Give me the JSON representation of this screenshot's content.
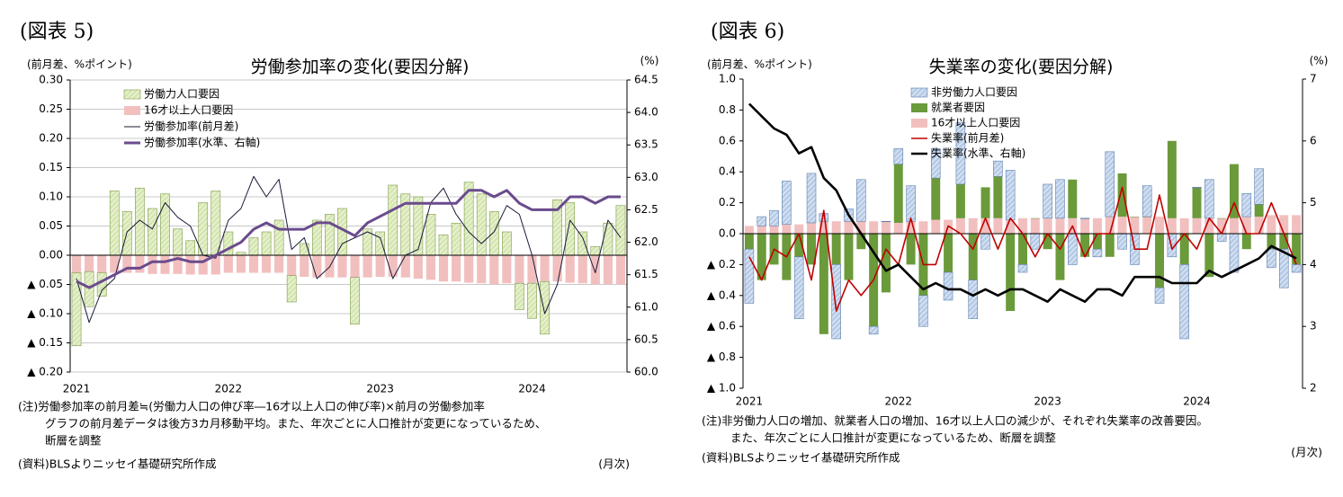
{
  "chart_data": [
    {
      "type": "bar",
      "figure_label": "(図表 5)",
      "title": "労働参加率の変化(要因分解)",
      "ylabel": "(前月差、%ポイント)",
      "y2label": "(%)",
      "xlabel": "(月次)",
      "notes": [
        "(注)労働参加率の前月差≒(労働力人口の伸び率―16才以上人口の伸び率)×前月の労働参加率",
        "グラフの前月差データは後方3カ月移動平均。また、年次ごとに人口推計が変更になっているため、",
        "断層を調整"
      ],
      "source": "(資料)BLSよりニッセイ基礎研究所作成",
      "categories": [
        "2021",
        null,
        null,
        null,
        null,
        null,
        null,
        null,
        null,
        null,
        null,
        null,
        "2022",
        null,
        null,
        null,
        null,
        null,
        null,
        null,
        null,
        null,
        null,
        null,
        "2023",
        null,
        null,
        null,
        null,
        null,
        null,
        null,
        null,
        null,
        null,
        null,
        "2024",
        null,
        null,
        null,
        null,
        null,
        null,
        null
      ],
      "ylim": [
        -0.2,
        0.3
      ],
      "yticks": [
        {
          "value": 0.3,
          "label": "0.30"
        },
        0.25,
        {
          "value": 0.2,
          "label": "0.20"
        },
        0.15,
        {
          "value": 0.1,
          "label": "0.10"
        },
        0.05,
        {
          "value": 0,
          "label": "0.00"
        },
        {
          "value": -0.05,
          "label": "▲ 0.05"
        },
        {
          "value": -0.1,
          "label": "▲ 0.10"
        },
        {
          "value": -0.15,
          "label": "▲ 0.15"
        },
        {
          "value": -0.2,
          "label": "▲ 0.20"
        }
      ],
      "y2lim": [
        60,
        64.5
      ],
      "y2ticks": [
        {
          "value": 60,
          "label": "60.0"
        },
        60.5,
        {
          "value": 61,
          "label": "61.0"
        },
        61.5,
        {
          "value": 62,
          "label": "62.0"
        },
        62.5,
        {
          "value": 63,
          "label": "63.0"
        },
        63.5,
        {
          "value": 64,
          "label": "64.0"
        },
        64.5
      ],
      "grid": true,
      "legend": "top-left",
      "series": [
        {
          "name": "労働力人口要因",
          "color": "#d5e6b0",
          "style": "bar",
          "hatch": true,
          "values": [
            -0.125,
            -0.06,
            -0.04,
            0.11,
            0.075,
            0.115,
            0.08,
            0.105,
            0.045,
            0.025,
            0.09,
            0.11,
            0.04,
            0.005,
            0.03,
            0.04,
            0.06,
            -0.045,
            0.02,
            0.06,
            0.07,
            0.08,
            -0.08,
            0.045,
            0.04,
            0.12,
            0.105,
            0.1,
            0.07,
            0.035,
            0.055,
            0.125,
            0.105,
            0.075,
            0.04,
            -0.045,
            -0.06,
            -0.09,
            0.095,
            0.09,
            0.04,
            0.015,
            0.055,
            0.085
          ]
        },
        {
          "name": "16才以上人口要因",
          "color": "#f2bfbf",
          "style": "bar",
          "values": [
            -0.03,
            -0.028,
            -0.03,
            -0.03,
            -0.03,
            -0.03,
            -0.032,
            -0.032,
            -0.032,
            -0.033,
            -0.033,
            -0.033,
            -0.03,
            -0.03,
            -0.03,
            -0.03,
            -0.03,
            -0.035,
            -0.037,
            -0.038,
            -0.038,
            -0.038,
            -0.038,
            -0.038,
            -0.037,
            -0.037,
            -0.038,
            -0.04,
            -0.042,
            -0.045,
            -0.045,
            -0.047,
            -0.048,
            -0.05,
            -0.048,
            -0.048,
            -0.048,
            -0.045,
            -0.045,
            -0.047,
            -0.048,
            -0.05,
            -0.05,
            -0.05
          ]
        },
        {
          "name": "労働参加率(前月差)",
          "color": "#1a1a3a",
          "style": "line",
          "width": 1,
          "values": [
            -0.04,
            -0.115,
            -0.06,
            -0.04,
            0.04,
            0.06,
            0.045,
            0.09,
            0.065,
            0.05,
            0.0,
            -0.005,
            0.06,
            0.08,
            0.135,
            0.1,
            0.13,
            0.01,
            0.03,
            -0.04,
            -0.02,
            0.02,
            0.03,
            0.04,
            0.03,
            -0.04,
            0.0,
            0.01,
            0.09,
            0.115,
            0.07,
            0.04,
            0.02,
            0.04,
            0.085,
            0.07,
            0.0,
            -0.1,
            -0.05,
            0.06,
            0.03,
            -0.03,
            0.06,
            0.03
          ]
        },
        {
          "name": "労働参加率(水準、右軸)",
          "color": "#6a4b8c",
          "style": "line",
          "width": 3,
          "axis": "y2",
          "values": [
            61.4,
            61.3,
            61.4,
            61.5,
            61.6,
            61.6,
            61.7,
            61.7,
            61.75,
            61.7,
            61.7,
            61.8,
            61.9,
            62.0,
            62.2,
            62.3,
            62.2,
            62.2,
            62.2,
            62.3,
            62.3,
            62.2,
            62.1,
            62.3,
            62.4,
            62.5,
            62.6,
            62.6,
            62.6,
            62.6,
            62.6,
            62.8,
            62.8,
            62.7,
            62.8,
            62.6,
            62.5,
            62.5,
            62.5,
            62.7,
            62.7,
            62.6,
            62.7,
            62.7
          ]
        }
      ]
    },
    {
      "type": "bar",
      "figure_label": "(図表 6)",
      "title": "失業率の変化(要因分解)",
      "ylabel": "(前月差、%ポイント)",
      "y2label": "(%)",
      "xlabel": "(月次)",
      "notes": [
        "(注)非労働力人口の増加、就業者人口の増加、16才以上人口の減少が、それぞれ失業率の改善要因。",
        "また、年次ごとに人口推計が変更になっているため、断層を調整"
      ],
      "source": "(資料)BLSよりニッセイ基礎研究所作成",
      "categories": [
        "2021",
        null,
        null,
        null,
        null,
        null,
        null,
        null,
        null,
        null,
        null,
        null,
        "2022",
        null,
        null,
        null,
        null,
        null,
        null,
        null,
        null,
        null,
        null,
        null,
        "2023",
        null,
        null,
        null,
        null,
        null,
        null,
        null,
        null,
        null,
        null,
        null,
        "2024",
        null,
        null,
        null,
        null,
        null,
        null,
        null,
        null
      ],
      "ylim": [
        -1,
        1
      ],
      "yticks": [
        {
          "value": 1,
          "label": "1.0"
        },
        0.8,
        0.6,
        0.4,
        0.2,
        {
          "value": 0,
          "label": "0.0"
        },
        {
          "value": -0.2,
          "label": "▲ 0.2"
        },
        {
          "value": -0.4,
          "label": "▲ 0.4"
        },
        {
          "value": -0.6,
          "label": "▲ 0.6"
        },
        {
          "value": -0.8,
          "label": "▲ 0.8"
        },
        {
          "value": -1,
          "label": "▲ 1.0"
        }
      ],
      "y2lim": [
        2,
        7
      ],
      "y2ticks": [
        2,
        3,
        4,
        5,
        6,
        7
      ],
      "grid": false,
      "legend": "top-left",
      "series": [
        {
          "name": "非労働力人口要因",
          "color": "#b7cbe6",
          "style": "bar",
          "hatch": true,
          "values": [
            -0.35,
            0.06,
            0.1,
            0.28,
            -0.4,
            0.32,
            0.05,
            -0.48,
            0.08,
            0.27,
            -0.05,
            0.0,
            0.1,
            0.23,
            -0.2,
            0.19,
            -0.18,
            0.4,
            -0.25,
            -0.1,
            0.1,
            0.32,
            -0.05,
            -0.1,
            0.22,
            0.25,
            -0.2,
            0.0,
            -0.05,
            0.42,
            -0.1,
            -0.2,
            0.2,
            -0.1,
            -0.15,
            -0.48,
            0.0,
            0.25,
            -0.05,
            -0.25,
            0.15,
            0.23,
            -0.12,
            -0.25,
            -0.05
          ]
        },
        {
          "name": "就業者要因",
          "color": "#6a9a3a",
          "style": "bar",
          "values": [
            -0.1,
            -0.3,
            -0.2,
            -0.3,
            -0.15,
            -0.2,
            -0.65,
            -0.2,
            -0.3,
            -0.1,
            -0.6,
            -0.38,
            0.38,
            -0.2,
            -0.4,
            0.27,
            -0.25,
            0.22,
            -0.3,
            0.2,
            0.27,
            -0.5,
            -0.2,
            0.0,
            -0.1,
            -0.3,
            0.25,
            -0.15,
            -0.1,
            -0.15,
            0.28,
            0.0,
            0.0,
            -0.35,
            0.5,
            -0.2,
            0.2,
            -0.28,
            0.0,
            0.35,
            -0.1,
            0.08,
            -0.1,
            -0.1,
            -0.2
          ]
        },
        {
          "name": "16才以上人口要因",
          "color": "#f2bfbf",
          "style": "bar",
          "values": [
            0.05,
            0.05,
            0.05,
            0.06,
            0.06,
            0.07,
            0.08,
            0.08,
            0.08,
            0.08,
            0.08,
            0.08,
            0.07,
            0.08,
            0.08,
            0.09,
            0.09,
            0.1,
            0.1,
            0.1,
            0.1,
            0.09,
            0.1,
            0.1,
            0.1,
            0.1,
            0.1,
            0.1,
            0.1,
            0.11,
            0.11,
            0.11,
            0.11,
            0.11,
            0.1,
            0.1,
            0.1,
            0.1,
            0.1,
            0.1,
            0.11,
            0.11,
            0.12,
            0.12,
            0.12
          ]
        },
        {
          "name": "失業率(前月差)",
          "color": "#c00000",
          "style": "line",
          "width": 1.6,
          "values": [
            -0.15,
            -0.3,
            -0.1,
            -0.15,
            0.0,
            -0.3,
            0.15,
            -0.5,
            -0.3,
            -0.4,
            -0.3,
            -0.1,
            -0.2,
            0.1,
            -0.2,
            -0.2,
            0.05,
            0.0,
            -0.1,
            0.1,
            -0.1,
            0.1,
            0.0,
            -0.15,
            0.0,
            -0.1,
            0.05,
            -0.15,
            0.0,
            0.0,
            0.3,
            -0.1,
            -0.1,
            0.25,
            -0.1,
            0.0,
            -0.1,
            0.1,
            0.0,
            0.2,
            0.0,
            0.0,
            0.2,
            0.0,
            -0.2
          ]
        },
        {
          "name": "失業率(水準、右軸)",
          "color": "#000000",
          "style": "line",
          "width": 2.6,
          "axis": "y2",
          "values": [
            6.6,
            6.4,
            6.2,
            6.1,
            5.8,
            5.9,
            5.4,
            5.2,
            4.8,
            4.5,
            4.2,
            3.9,
            4.0,
            3.8,
            3.6,
            3.7,
            3.6,
            3.6,
            3.5,
            3.6,
            3.5,
            3.6,
            3.6,
            3.5,
            3.4,
            3.6,
            3.5,
            3.4,
            3.6,
            3.6,
            3.5,
            3.8,
            3.8,
            3.8,
            3.7,
            3.7,
            3.7,
            3.9,
            3.8,
            3.9,
            4.0,
            4.1,
            4.3,
            4.2,
            4.1
          ]
        }
      ]
    }
  ]
}
